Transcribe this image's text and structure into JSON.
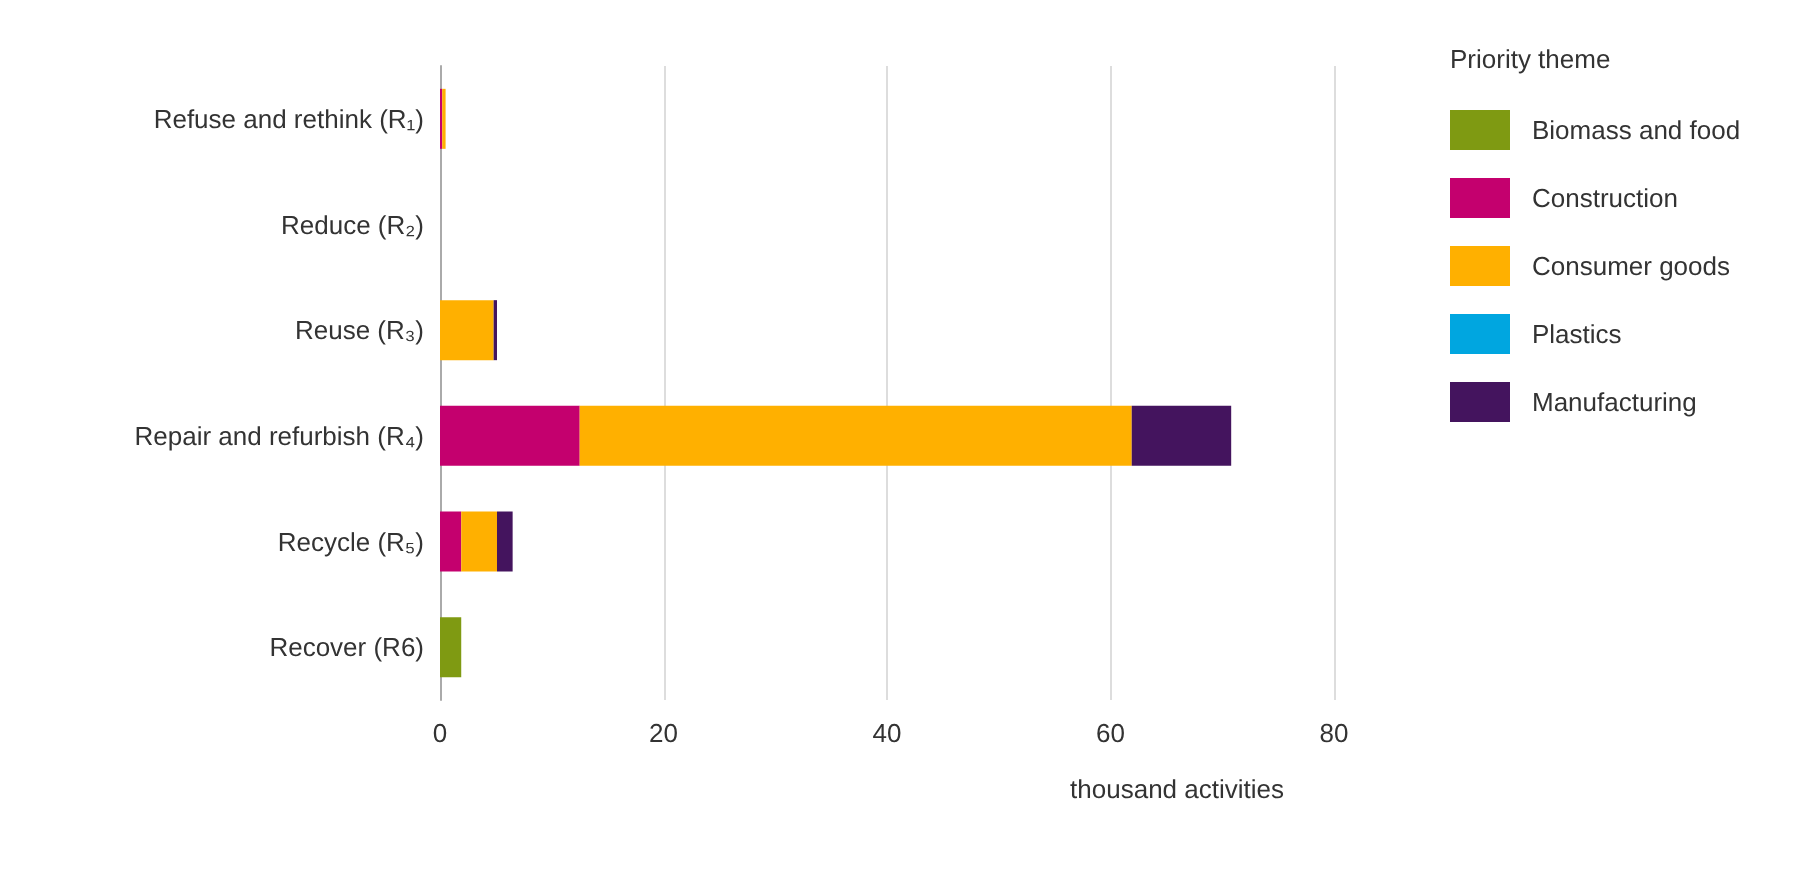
{
  "chart_data": {
    "type": "bar",
    "orientation": "horizontal",
    "stacked": true,
    "xlabel": "thousand activities",
    "legend_title": "Priority theme",
    "legend": "right",
    "grid": "x",
    "categories": [
      "Refuse and rethink (R₁)",
      "Reduce (R₂)",
      "Reuse (R₃)",
      "Repair and refurbish (R₄)",
      "Recycle (R₅)",
      "Recover (R6)"
    ],
    "series": [
      {
        "name": "Biomass and food",
        "color": "#7f9a12",
        "values": [
          0,
          0,
          0,
          0,
          0,
          1.9
        ]
      },
      {
        "name": "Construction",
        "color": "#c4006e",
        "values": [
          0.2,
          0,
          0,
          12.5,
          1.9,
          0
        ]
      },
      {
        "name": "Consumer goods",
        "color": "#ffb000",
        "values": [
          0.3,
          0,
          4.8,
          49.4,
          3.2,
          0
        ]
      },
      {
        "name": "Plastics",
        "color": "#00a6e0",
        "values": [
          0,
          0,
          0,
          0,
          0,
          0
        ]
      },
      {
        "name": "Manufacturing",
        "color": "#44145e",
        "values": [
          0,
          0,
          0.3,
          8.9,
          1.4,
          0
        ]
      }
    ],
    "xlim": [
      0,
      80
    ],
    "xticks": [
      0,
      20,
      40,
      60,
      80
    ]
  }
}
